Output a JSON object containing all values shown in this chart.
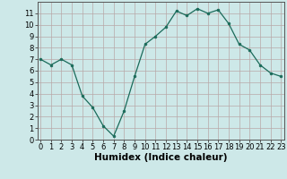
{
  "x": [
    0,
    1,
    2,
    3,
    4,
    5,
    6,
    7,
    8,
    9,
    10,
    11,
    12,
    13,
    14,
    15,
    16,
    17,
    18,
    19,
    20,
    21,
    22,
    23
  ],
  "y": [
    7.0,
    6.5,
    7.0,
    6.5,
    3.8,
    2.8,
    1.2,
    0.3,
    2.5,
    5.5,
    8.3,
    9.0,
    9.8,
    11.2,
    10.8,
    11.4,
    11.0,
    11.3,
    10.1,
    8.3,
    7.8,
    6.5,
    5.8,
    5.5
  ],
  "xlabel": "Humidex (Indice chaleur)",
  "ylim": [
    0,
    12
  ],
  "xlim": [
    -0.3,
    23.3
  ],
  "yticks": [
    0,
    1,
    2,
    3,
    4,
    5,
    6,
    7,
    8,
    9,
    10,
    11
  ],
  "xticks": [
    0,
    1,
    2,
    3,
    4,
    5,
    6,
    7,
    8,
    9,
    10,
    11,
    12,
    13,
    14,
    15,
    16,
    17,
    18,
    19,
    20,
    21,
    22,
    23
  ],
  "line_color": "#1a6b5a",
  "marker_color": "#1a6b5a",
  "bg_color": "#cde8e8",
  "grid_color": "#b8a8a8",
  "tick_label_fontsize": 6.0,
  "xlabel_fontsize": 7.5
}
